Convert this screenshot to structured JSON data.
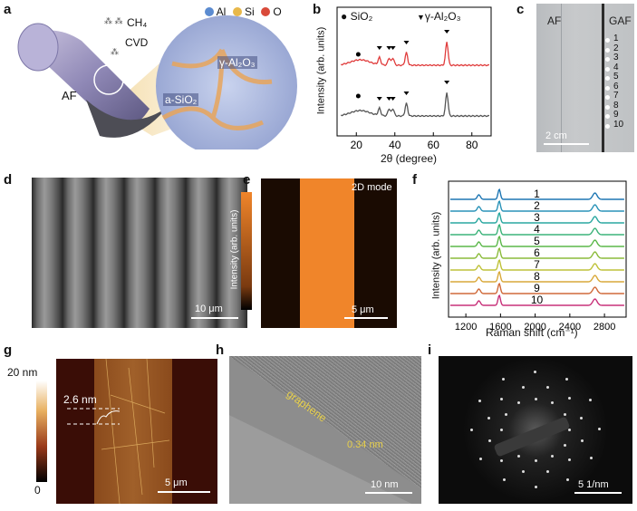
{
  "panels": {
    "a": {
      "label": "a",
      "gas": "CH₄",
      "process": "CVD",
      "fiber_label": "AF",
      "legend": [
        {
          "sym": "Al",
          "color": "#5b8bd0"
        },
        {
          "sym": "Si",
          "color": "#e8b84a"
        },
        {
          "sym": "O",
          "color": "#d94a3a"
        }
      ],
      "phase_top": "γ-Al₂O₃",
      "phase_bottom": "a-SiO₂"
    },
    "b": {
      "label": "b",
      "chart_data": {
        "type": "line",
        "xlabel": "2θ (degree)",
        "ylabel": "Intensity (arb. units)",
        "xlim": [
          10,
          90
        ],
        "xticks": [
          20,
          40,
          60,
          80
        ],
        "legend": [
          {
            "marker": "●",
            "name": "SiO₂"
          },
          {
            "marker": "▼",
            "name": "γ-Al₂O₃"
          }
        ],
        "series": [
          {
            "name": "top",
            "color": "#e03c3c"
          },
          {
            "name": "bottom",
            "color": "#555555"
          }
        ],
        "peaks_sio2": [
          21
        ],
        "peaks_al2o3": [
          32,
          37,
          39,
          46,
          67
        ]
      }
    },
    "c": {
      "label": "c",
      "left": "AF",
      "right": "GAF",
      "points": [
        "1",
        "2",
        "3",
        "4",
        "5",
        "6",
        "7",
        "8",
        "9",
        "10"
      ],
      "scale": "2 cm"
    },
    "d": {
      "label": "d",
      "scale": "10 μm"
    },
    "e": {
      "label": "e",
      "mode": "2D mode",
      "colorbar": "Intensity (arb. units)",
      "scale": "5 μm"
    },
    "f": {
      "label": "f",
      "chart_data": {
        "type": "line",
        "xlabel": "Raman shift (cm⁻¹)",
        "ylabel": "Intensity (arb. units)",
        "xlim": [
          1000,
          3050
        ],
        "xticks": [
          1200,
          1600,
          2000,
          2400,
          2800
        ],
        "series_labels": [
          "1",
          "2",
          "3",
          "4",
          "5",
          "6",
          "7",
          "8",
          "9",
          "10"
        ],
        "colors": [
          "#1f77b4",
          "#2a93b8",
          "#2aa7a0",
          "#3cb37a",
          "#5cb84a",
          "#8cbc3c",
          "#bfc23a",
          "#d9a93a",
          "#d06a3a",
          "#c8327a"
        ],
        "peaks": [
          1350,
          1585,
          2690
        ]
      }
    },
    "g": {
      "label": "g",
      "cb_max": "20 nm",
      "cb_min": "0",
      "step": "2.6 nm",
      "scale": "5 μm"
    },
    "h": {
      "label": "h",
      "layer": "graphene",
      "spacing": "0.34 nm",
      "scale": "10 nm"
    },
    "i": {
      "label": "i",
      "scale": "5 1/nm"
    }
  }
}
